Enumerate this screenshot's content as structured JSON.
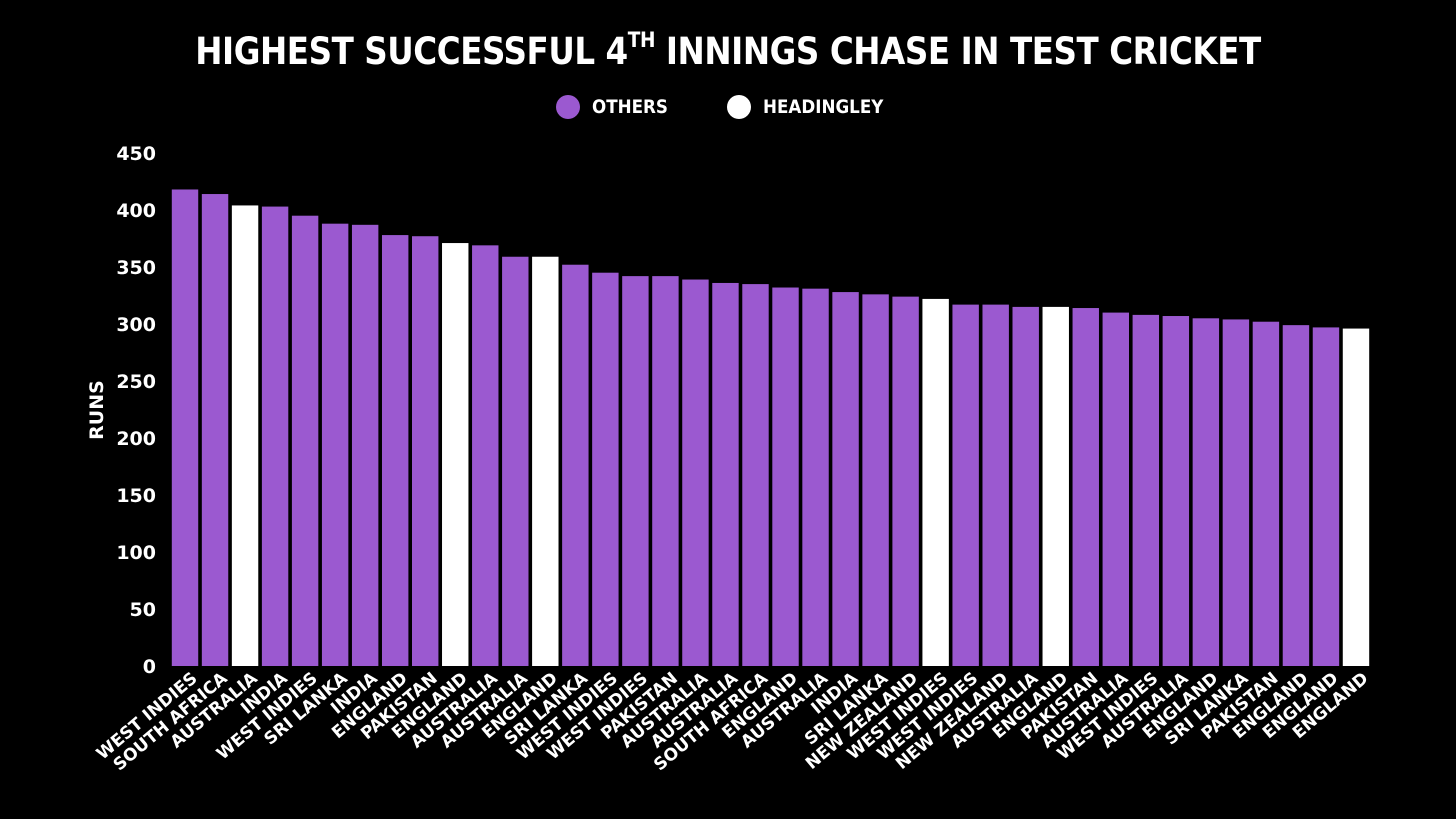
{
  "chart_data": {
    "type": "bar",
    "title_main": "HIGHEST SUCCESSFUL 4",
    "title_sup": "TH",
    "title_rest": " INNINGS CHASE IN TEST CRICKET",
    "ylabel": "RUNS",
    "ylim": [
      0,
      450
    ],
    "yticks": [
      0,
      50,
      100,
      150,
      200,
      250,
      300,
      350,
      400,
      450
    ],
    "legend_placement": "top-center",
    "legend": [
      {
        "name": "OTHERS",
        "color": "#9b59d0"
      },
      {
        "name": "HEADINGLEY",
        "color": "#ffffff"
      }
    ],
    "categories": [
      "WEST INDIES",
      "SOUTH AFRICA",
      "AUSTRALIA",
      "INDIA",
      "WEST INDIES",
      "SRI LANKA",
      "INDIA",
      "ENGLAND",
      "PAKISTAN",
      "ENGLAND",
      "AUSTRALIA",
      "AUSTRALIA",
      "ENGLAND",
      "SRI LANKA",
      "WEST INDIES",
      "WEST INDIES",
      "PAKISTAN",
      "AUSTRALIA",
      "AUSTRALIA",
      "SOUTH AFRICA",
      "ENGLAND",
      "AUSTRALIA",
      "INDIA",
      "SRI LANKA",
      "NEW ZEALAND",
      "WEST INDIES",
      "WEST INDIES",
      "NEW ZEALAND",
      "AUSTRALIA",
      "ENGLAND",
      "PAKISTAN",
      "AUSTRALIA",
      "WEST INDIES",
      "AUSTRALIA",
      "ENGLAND",
      "SRI LANKA",
      "PAKISTAN",
      "ENGLAND",
      "ENGLAND",
      "ENGLAND"
    ],
    "values": [
      418,
      414,
      404,
      403,
      395,
      388,
      387,
      378,
      377,
      371,
      369,
      359,
      359,
      352,
      345,
      342,
      342,
      339,
      336,
      335,
      332,
      331,
      328,
      326,
      324,
      322,
      317,
      317,
      315,
      315,
      314,
      310,
      308,
      307,
      305,
      304,
      302,
      299,
      297,
      296
    ],
    "series_index": [
      0,
      0,
      1,
      0,
      0,
      0,
      0,
      0,
      0,
      1,
      0,
      0,
      1,
      0,
      0,
      0,
      0,
      0,
      0,
      0,
      0,
      0,
      0,
      0,
      0,
      1,
      0,
      0,
      0,
      1,
      0,
      0,
      0,
      0,
      0,
      0,
      0,
      0,
      0,
      1
    ],
    "grid": false
  }
}
